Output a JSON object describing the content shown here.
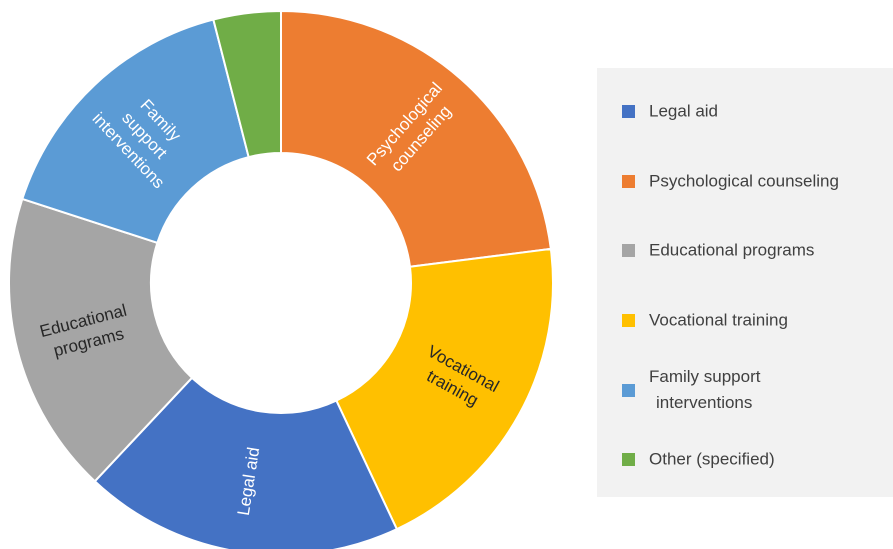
{
  "chart_data": {
    "type": "donut",
    "categories": [
      "Psychological counseling",
      "Vocational training",
      "Legal aid",
      "Educational programs",
      "Family support interventions",
      "Other (specified)"
    ],
    "values": [
      23,
      20,
      19,
      18,
      16,
      4
    ],
    "colors": [
      "#ed7d31",
      "#ffc000",
      "#4472c4",
      "#a5a5a5",
      "#5b9bd5",
      "#70ad47"
    ],
    "legend_order": [
      2,
      0,
      3,
      1,
      4,
      5
    ],
    "legend": "right"
  }
}
